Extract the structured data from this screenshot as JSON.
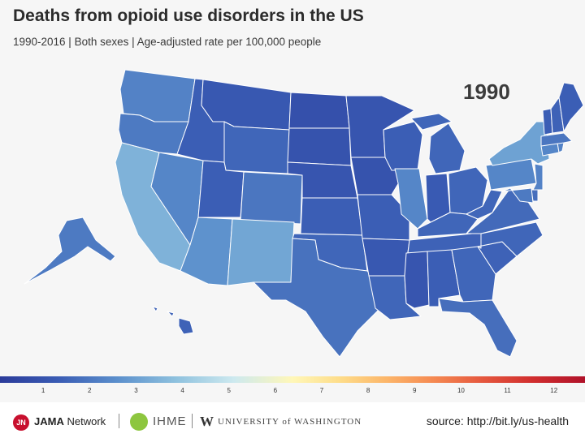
{
  "header": {
    "title": "Deaths from opioid use disorders in the US",
    "subtitle": "1990-2016 | Both sexes | Age-adjusted rate per 100,000 people",
    "year": "1990"
  },
  "colors": {
    "rate_0_5": "#2c3d9b",
    "rate_1": "#3249a3",
    "rate_1_5": "#3b5bb0",
    "rate_2": "#4a74bf",
    "rate_2_5": "#5a8ac9",
    "rate_3": "#6ea6d6",
    "rate_3_5": "#80b8dd",
    "rate_high": "#9dcae6",
    "rate_8": "#fca365",
    "rate_12": "#b0122a"
  },
  "legend": {
    "ticks": [
      "1",
      "2",
      "3",
      "4",
      "5",
      "6",
      "7",
      "8",
      "9",
      "10",
      "11",
      "12"
    ],
    "range": [
      0,
      12.6
    ]
  },
  "map_data": {
    "type": "choropleth",
    "year": 1990,
    "rates": {
      "WA": 2.2,
      "OR": 2.0,
      "CA": 3.4,
      "NV": 2.3,
      "ID": 1.3,
      "MT": 1.1,
      "WY": 1.5,
      "UT": 1.3,
      "AZ": 2.6,
      "CO": 1.9,
      "NM": 3.1,
      "ND": 0.8,
      "SD": 0.9,
      "NE": 1.0,
      "KS": 1.3,
      "OK": 1.5,
      "TX": 1.8,
      "MN": 1.0,
      "IA": 0.9,
      "MO": 1.3,
      "AR": 1.1,
      "LA": 1.5,
      "WI": 1.3,
      "IL": 2.3,
      "MI": 1.5,
      "IN": 1.2,
      "OH": 1.5,
      "KY": 1.5,
      "TN": 1.4,
      "MS": 1.0,
      "AL": 1.3,
      "GA": 1.5,
      "FL": 1.7,
      "SC": 1.4,
      "NC": 1.5,
      "VA": 1.6,
      "WV": 1.5,
      "PA": 2.3,
      "NY": 3.0,
      "NJ": 2.2,
      "DE": 1.7,
      "MD": 2.0,
      "CT": 2.3,
      "RI": 2.2,
      "MA": 1.9,
      "VT": 1.3,
      "NH": 1.4,
      "ME": 1.3,
      "AK": 2.0,
      "HI": 1.4
    }
  },
  "footer": {
    "jama_logo": "JN",
    "jama_brand": "JAMA",
    "jama_network": "Network",
    "ihme": "IHME",
    "uw_mark": "W",
    "uw_text": "UNIVERSITY of WASHINGTON",
    "source": "source: http://bit.ly/us-health"
  }
}
